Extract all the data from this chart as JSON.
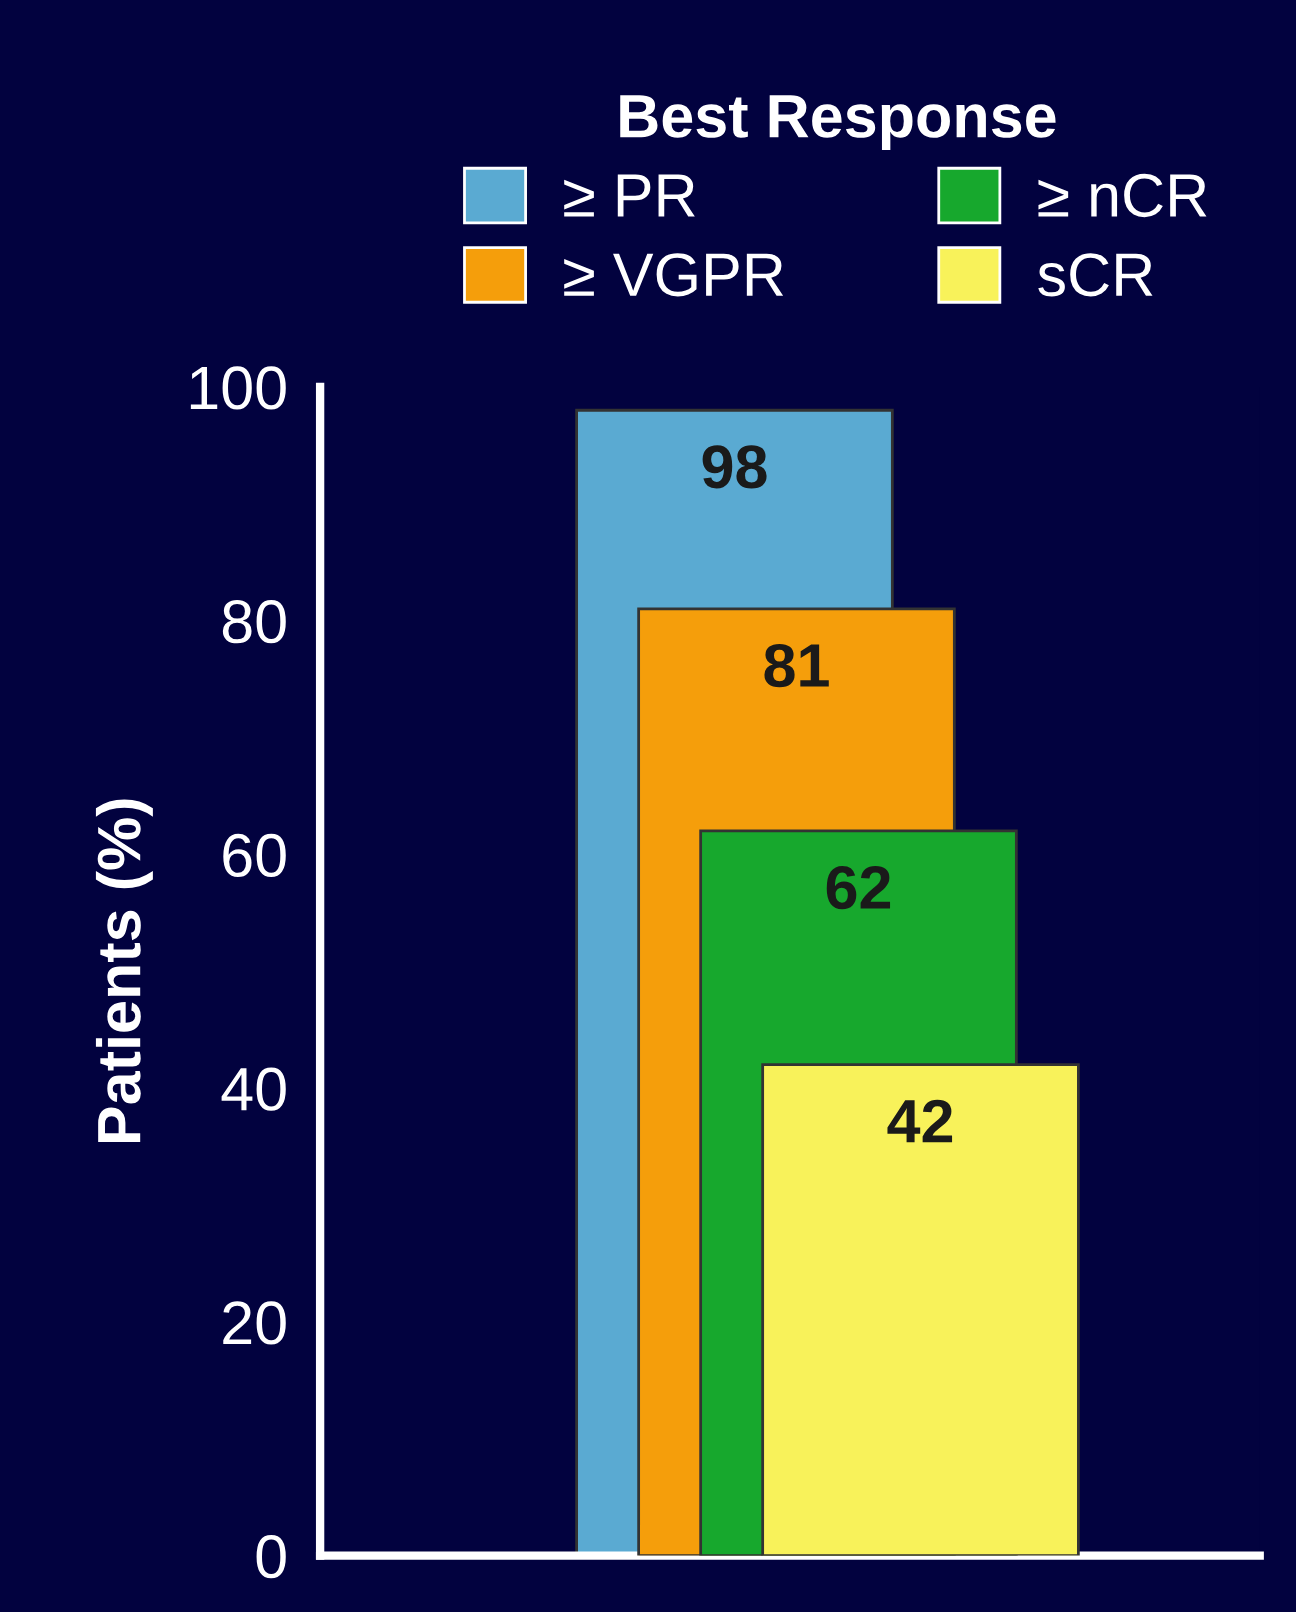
{
  "chart_data": {
    "type": "bar",
    "ylabel": "Patients (%)",
    "legend_title": "Best Response",
    "categories": [
      null
    ],
    "series": [
      {
        "name": "≥ PR",
        "color": "#5aaad2",
        "values": [
          98
        ]
      },
      {
        "name": "≥ VGPR",
        "color": "#f59e0b",
        "values": [
          81
        ]
      },
      {
        "name": "≥ nCR",
        "color": "#17a82d",
        "values": [
          62
        ]
      },
      {
        "name": "sCR",
        "color": "#f8f25a",
        "values": [
          42
        ]
      }
    ],
    "ylim": [
      0,
      100
    ],
    "yticks": [
      0,
      20,
      40,
      60,
      80,
      100
    ],
    "data_labels": true,
    "legend": "top",
    "grid": false
  }
}
